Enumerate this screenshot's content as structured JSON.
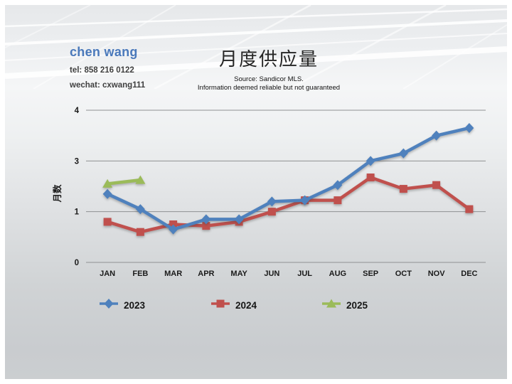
{
  "slide": {
    "agent": {
      "name": "chen wang",
      "tel": "tel: 858 216 0122",
      "wechat": "wechat: cxwang111"
    },
    "title": "月度供应量",
    "source_line1": "Source: Sandicor MLS.",
    "source_line2": "Information deemed reliable but not guaranteed"
  },
  "chart_data": {
    "type": "line",
    "title": "月度供应量",
    "ylabel": "月数",
    "xlabel": "",
    "categories": [
      "JAN",
      "FEB",
      "MAR",
      "APR",
      "MAY",
      "JUN",
      "JUL",
      "AUG",
      "SEP",
      "OCT",
      "NOV",
      "DEC"
    ],
    "y_ticks": [
      0,
      1,
      3,
      4
    ],
    "ylim": [
      0,
      4
    ],
    "grid": true,
    "legend_position": "bottom",
    "draw_order": [
      1,
      0,
      2
    ],
    "series": [
      {
        "name": "2023",
        "marker": "diamond",
        "color": "#4f81bd",
        "values": [
          1.7,
          1.1,
          0.65,
          0.85,
          0.85,
          1.4,
          1.45,
          2.05,
          3.0,
          3.15,
          3.5,
          3.65
        ]
      },
      {
        "name": "2024",
        "marker": "square",
        "color": "#c0504d",
        "values": [
          0.8,
          0.6,
          0.75,
          0.72,
          0.8,
          1.0,
          1.45,
          1.45,
          2.35,
          1.9,
          2.05,
          1.1
        ]
      },
      {
        "name": "2025",
        "marker": "triangle",
        "color": "#9bbb59",
        "values": [
          2.1,
          2.25,
          null,
          null,
          null,
          null,
          null,
          null,
          null,
          null,
          null,
          null
        ]
      }
    ]
  }
}
